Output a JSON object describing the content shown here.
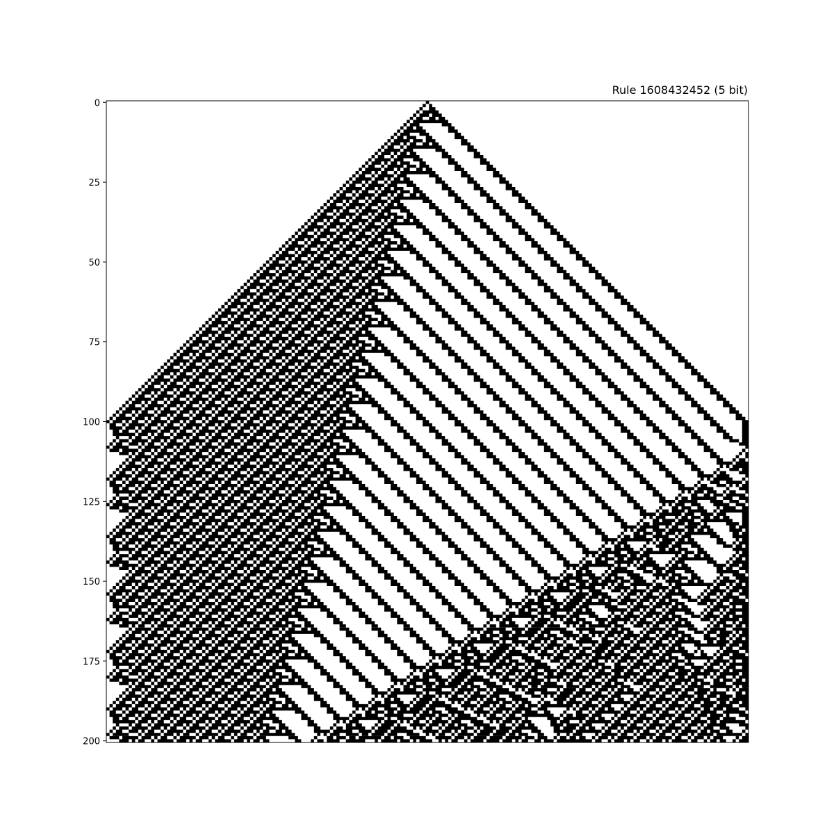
{
  "chart_data": {
    "type": "heatmap",
    "title": "Rule 1608432452 (5 bit)",
    "xlabel": "",
    "ylabel": "",
    "ylim": [
      0,
      200
    ],
    "y_ticks": [
      "0",
      "25",
      "50",
      "75",
      "100",
      "125",
      "150",
      "175",
      "200"
    ],
    "x_ticks_visible": false,
    "grid": false,
    "rule": 1608432452,
    "neighborhood_bits": 5,
    "rows": 201,
    "cols": 201,
    "initial_state": "single black cell at column 100",
    "boundary": "fixed white",
    "colors": {
      "on": "#000000",
      "off": "#ffffff"
    }
  }
}
